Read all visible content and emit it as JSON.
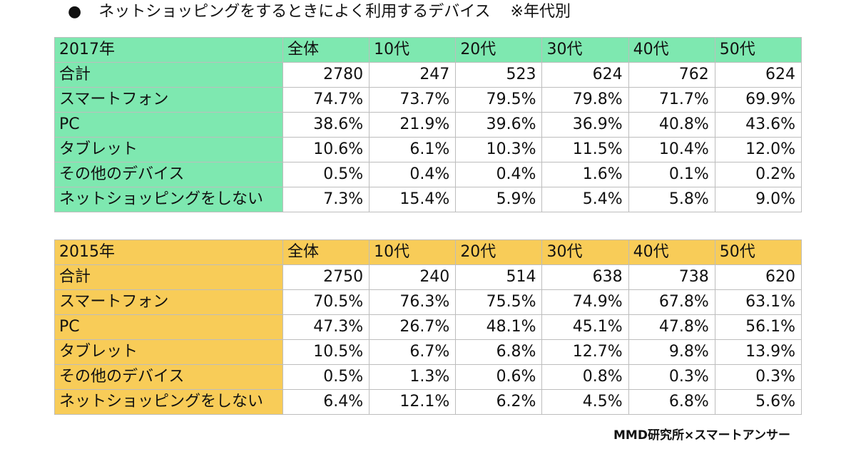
{
  "heading": {
    "bullet": "●",
    "title": "ネットショッピングをするときによく利用するデバイス",
    "note": "※年代別"
  },
  "columns": [
    "全体",
    "10代",
    "20代",
    "30代",
    "40代",
    "50代"
  ],
  "rows": [
    "合計",
    "スマートフォン",
    "PC",
    "タブレット",
    "その他のデバイス",
    "ネットショッピングをしない"
  ],
  "colors": {
    "2017_header": "#7ee8b0",
    "2015_header": "#f8cc58"
  },
  "chart_data": [
    {
      "type": "table",
      "title": "2017年",
      "columns": [
        "全体",
        "10代",
        "20代",
        "30代",
        "40代",
        "50代"
      ],
      "rows": [
        {
          "label": "合計",
          "values": [
            "2780",
            "247",
            "523",
            "624",
            "762",
            "624"
          ]
        },
        {
          "label": "スマートフォン",
          "values": [
            "74.7%",
            "73.7%",
            "79.5%",
            "79.8%",
            "71.7%",
            "69.9%"
          ]
        },
        {
          "label": "PC",
          "values": [
            "38.6%",
            "21.9%",
            "39.6%",
            "36.9%",
            "40.8%",
            "43.6%"
          ]
        },
        {
          "label": "タブレット",
          "values": [
            "10.6%",
            "6.1%",
            "10.3%",
            "11.5%",
            "10.4%",
            "12.0%"
          ]
        },
        {
          "label": "その他のデバイス",
          "values": [
            "0.5%",
            "0.4%",
            "0.4%",
            "1.6%",
            "0.1%",
            "0.2%"
          ]
        },
        {
          "label": "ネットショッピングをしない",
          "values": [
            "7.3%",
            "15.4%",
            "5.9%",
            "5.4%",
            "5.8%",
            "9.0%"
          ]
        }
      ]
    },
    {
      "type": "table",
      "title": "2015年",
      "columns": [
        "全体",
        "10代",
        "20代",
        "30代",
        "40代",
        "50代"
      ],
      "rows": [
        {
          "label": "合計",
          "values": [
            "2750",
            "240",
            "514",
            "638",
            "738",
            "620"
          ]
        },
        {
          "label": "スマートフォン",
          "values": [
            "70.5%",
            "76.3%",
            "75.5%",
            "74.9%",
            "67.8%",
            "63.1%"
          ]
        },
        {
          "label": "PC",
          "values": [
            "47.3%",
            "26.7%",
            "48.1%",
            "45.1%",
            "47.8%",
            "56.1%"
          ]
        },
        {
          "label": "タブレット",
          "values": [
            "10.5%",
            "6.7%",
            "6.8%",
            "12.7%",
            "9.8%",
            "13.9%"
          ]
        },
        {
          "label": "その他のデバイス",
          "values": [
            "0.5%",
            "1.3%",
            "0.6%",
            "0.8%",
            "0.3%",
            "0.3%"
          ]
        },
        {
          "label": "ネットショッピングをしない",
          "values": [
            "6.4%",
            "12.1%",
            "6.2%",
            "4.5%",
            "6.8%",
            "5.6%"
          ]
        }
      ]
    }
  ],
  "footer": {
    "source": "MMD研究所×スマートアンサー"
  }
}
